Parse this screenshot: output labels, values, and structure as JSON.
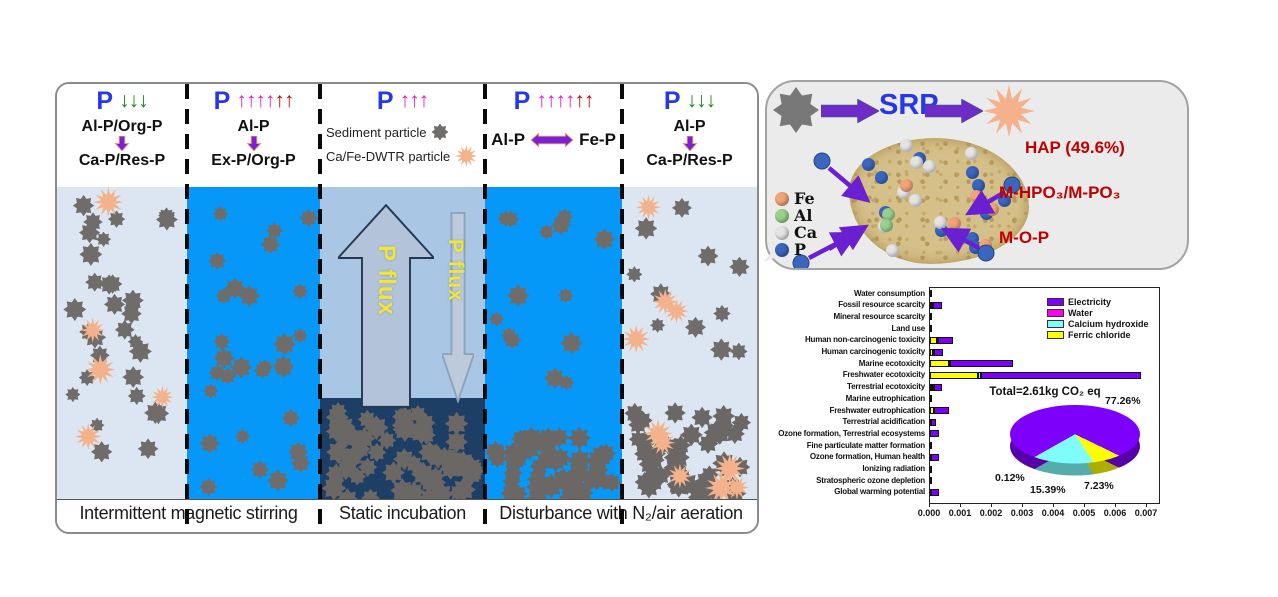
{
  "colors": {
    "water_light": "#dbe6f2",
    "water_deep": "#0698f8",
    "water_mid": "#a9c6e5",
    "sediment_dark": "#1d3f66",
    "particle_gray": "#6f6c6a",
    "pile_gray": "#6a6765",
    "dwtr_orange": "#f3b28b",
    "accent_purple": "#7a1fd8",
    "p_blue": "#2438e8",
    "label_red": "#c00000"
  },
  "experiment": {
    "panels": [
      {
        "p_label": "P",
        "arrows": [
          {
            "g": "↓",
            "c": "#128a12"
          },
          {
            "g": "↓",
            "c": "#128a12"
          },
          {
            "g": "↓",
            "c": "#128a12"
          }
        ],
        "reaction": {
          "from": "Al-P/Org-P",
          "to": "Ca-P/Res-P"
        }
      },
      {
        "p_label": "P",
        "arrows": [
          {
            "g": "↑",
            "c": "#df1ed2"
          },
          {
            "g": "↑",
            "c": "#df1ed2"
          },
          {
            "g": "↑",
            "c": "#df1ed2"
          },
          {
            "g": "↑",
            "c": "#df1ed2"
          },
          {
            "g": "↑",
            "c": "#bb0a0a"
          },
          {
            "g": "↑",
            "c": "#bb0a0a"
          }
        ],
        "reaction": {
          "from": "Al-P",
          "to": "Ex-P/Org-P"
        }
      },
      {
        "p_label": "P",
        "arrows": [
          {
            "g": "↑",
            "c": "#df1ed2"
          },
          {
            "g": "↑",
            "c": "#df1ed2"
          },
          {
            "g": "↑",
            "c": "#df1ed2"
          }
        ],
        "particle_legend": [
          {
            "label": "Sediment particle"
          },
          {
            "label": "Ca/Fe-DWTR particle"
          }
        ],
        "flux_up_label": "P flux",
        "flux_down_label": "P flux"
      },
      {
        "p_label": "P",
        "arrows": [
          {
            "g": "↑",
            "c": "#df1ed2"
          },
          {
            "g": "↑",
            "c": "#df1ed2"
          },
          {
            "g": "↑",
            "c": "#df1ed2"
          },
          {
            "g": "↑",
            "c": "#df1ed2"
          },
          {
            "g": "↑",
            "c": "#bb0a0a"
          },
          {
            "g": "↑",
            "c": "#bb0a0a"
          }
        ],
        "exchange": {
          "left": "Al-P",
          "right": "Fe-P"
        }
      },
      {
        "p_label": "P",
        "arrows": [
          {
            "g": "↓",
            "c": "#128a12"
          },
          {
            "g": "↓",
            "c": "#128a12"
          },
          {
            "g": "↓",
            "c": "#128a12"
          }
        ],
        "reaction": {
          "from": "Al-P",
          "to": "Ca-P/Res-P"
        }
      }
    ],
    "footer_labels": [
      "Intermittent magnetic stirring",
      "Static incubation",
      "Disturbance with N₂/air aeration"
    ]
  },
  "bubble": {
    "srp_label": "SRP",
    "species_legend": [
      {
        "label": "Fe",
        "color": "#f2a378"
      },
      {
        "label": "Al",
        "color": "#98d08c"
      },
      {
        "label": "Ca",
        "color": "#e4e4e4"
      },
      {
        "label": "P",
        "color": "#3a66c0"
      }
    ],
    "products": [
      {
        "label": "HAP (49.6%)"
      },
      {
        "label": "M-HPO₃/M-PO₃"
      },
      {
        "label": "M-O-P"
      }
    ]
  },
  "chart_data": [
    {
      "type": "bar",
      "orientation": "horizontal-stacked",
      "title": "",
      "xlabel": "",
      "ylabel": "",
      "xlim": [
        0,
        0.0072
      ],
      "x_ticks": [
        "0.000",
        "0.001",
        "0.002",
        "0.003",
        "0.004",
        "0.005",
        "0.006",
        "0.007"
      ],
      "grid": false,
      "legend_position": "top-right",
      "categories": [
        "Water consumption",
        "Fossil resource scarcity",
        "Mineral resource scarcity",
        "Land use",
        "Human non-carcinogenic toxicity",
        "Human carcinogenic toxicity",
        "Marine ecotoxicity",
        "Freshwater ecotoxicity",
        "Terrestrial ecotoxicity",
        "Marine eutrophication",
        "Freshwater eutrophication",
        "Terrestrial acidification",
        "Ozone formation, Terrestrial ecosystems",
        "Fine particulate matter formation",
        "Ozone formation, Human health",
        "Ionizing radiation",
        "Stratospheric ozone depletion",
        "Global warming potential"
      ],
      "series": [
        {
          "name": "Ferric chloride",
          "color": "#ffff00",
          "values": [
            0,
            8e-05,
            0,
            0,
            0.00022,
            0.0001,
            0.0006,
            0.00155,
            8e-05,
            0,
            0.00012,
            2e-05,
            0,
            0,
            2e-05,
            0,
            0,
            4e-05
          ]
        },
        {
          "name": "Calcium hydroxide",
          "color": "#7ffcfc",
          "values": [
            0,
            2e-05,
            0,
            0,
            3e-05,
            4e-05,
            4e-05,
            0.0001,
            4e-05,
            0,
            2e-05,
            0,
            0,
            0,
            0,
            0,
            0,
            0
          ]
        },
        {
          "name": "Water",
          "color": "#ff00f0",
          "values": [
            0,
            0,
            0,
            0,
            0,
            0,
            0,
            0,
            0,
            0,
            0,
            0,
            0,
            0,
            0,
            0,
            0,
            0
          ]
        },
        {
          "name": "Electricity",
          "color": "#7d00fa",
          "values": [
            4e-05,
            0.0003,
            1e-05,
            1e-05,
            0.0005,
            0.00028,
            0.00205,
            0.00515,
            0.00028,
            1e-05,
            0.00048,
            0.00016,
            0.00028,
            8e-05,
            0.00026,
            3e-05,
            1e-05,
            0.00024
          ]
        }
      ],
      "legend": [
        {
          "label": "Electricity",
          "color": "#7d00fa"
        },
        {
          "label": "Water",
          "color": "#ff00f0"
        },
        {
          "label": "Calcium hydroxide",
          "color": "#7ffcfc"
        },
        {
          "label": "Ferric chloride",
          "color": "#ffff00"
        }
      ]
    },
    {
      "type": "pie",
      "style": "3d",
      "title": "Total=2.61kg CO₂ eq",
      "slices": [
        {
          "label": "Electricity",
          "value": 77.26,
          "pct_label": "77.26%",
          "color": "#7d00fa"
        },
        {
          "label": "Ferric chloride",
          "value": 7.23,
          "pct_label": "7.23%",
          "color": "#ffff00"
        },
        {
          "label": "Calcium hydroxide",
          "value": 15.39,
          "pct_label": "15.39%",
          "color": "#7ffcfc"
        },
        {
          "label": "Water",
          "value": 0.12,
          "pct_label": "0.12%",
          "color": "#ff00f0"
        }
      ]
    }
  ]
}
